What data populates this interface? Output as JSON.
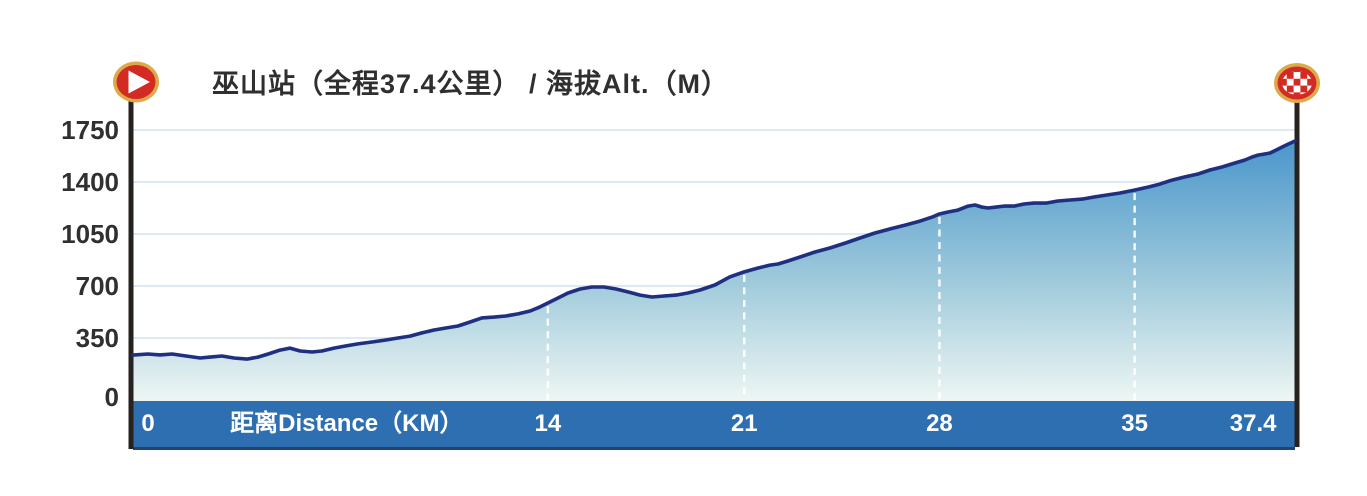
{
  "title": "巫山站（全程37.4公里） / 海拔Alt.（M）",
  "colors": {
    "bar_blue": "#2e6fb2",
    "bar_edge": "#1e4470",
    "line_navy": "#203080",
    "fill_top": "#4392ca",
    "fill_mid": "#a6cedd",
    "fill_bottom": "#eef6f4",
    "gridline": "#dde9f5",
    "axis_black": "#272220",
    "flag_red": "#d32b23",
    "flag_gold": "#ddaa4a",
    "text_dark": "#2f2f2f",
    "bar_text": "#ffffff"
  },
  "icons": {
    "start": "start-play-flag-icon",
    "finish": "finish-checkered-flag-icon"
  },
  "chart_data": {
    "type": "area",
    "title": "巫山站（全程37.4公里） / 海拔Alt.（M）",
    "stage_name": "巫山站",
    "total_distance_km": 37.4,
    "xlabel": "距离Distance（KM）",
    "ylabel": "海拔Alt.（M）",
    "x_range_km": [
      0,
      37.4
    ],
    "ylim": [
      0,
      1900
    ],
    "y_ticks": [
      0,
      350,
      700,
      1050,
      1400,
      1750
    ],
    "grid": "horizontal-light-blue, vertical-white-dashed-inside-area",
    "legend_position": "none",
    "x_ticks": [
      {
        "label": "0",
        "pct": 1.3
      },
      {
        "label": "距离Distance（KM）",
        "pct": 18.4
      },
      {
        "label": "14",
        "pct": 35.7
      },
      {
        "label": "21",
        "pct": 52.6
      },
      {
        "label": "28",
        "pct": 69.4
      },
      {
        "label": "35",
        "pct": 86.2
      },
      {
        "label": "37.4",
        "pct": 96.4
      }
    ],
    "x_gridlines_pct": [
      35.7,
      52.6,
      69.4,
      86.2
    ],
    "profile_km_m": [
      [
        0,
        255
      ],
      [
        0.48,
        261
      ],
      [
        0.87,
        256
      ],
      [
        1.26,
        261
      ],
      [
        1.71,
        250
      ],
      [
        2.16,
        239
      ],
      [
        2.48,
        244
      ],
      [
        2.86,
        250
      ],
      [
        3.25,
        239
      ],
      [
        3.67,
        233
      ],
      [
        4.02,
        244
      ],
      [
        4.35,
        261
      ],
      [
        4.73,
        283
      ],
      [
        5.05,
        294
      ],
      [
        5.38,
        278
      ],
      [
        5.76,
        272
      ],
      [
        6.08,
        278
      ],
      [
        6.47,
        294
      ],
      [
        6.86,
        306
      ],
      [
        7.24,
        317
      ],
      [
        7.69,
        328
      ],
      [
        8.14,
        339
      ],
      [
        8.53,
        350
      ],
      [
        8.92,
        363
      ],
      [
        9.3,
        384
      ],
      [
        9.69,
        404
      ],
      [
        10.07,
        417
      ],
      [
        10.46,
        431
      ],
      [
        10.85,
        458
      ],
      [
        11.23,
        485
      ],
      [
        11.62,
        491
      ],
      [
        12,
        498
      ],
      [
        12.39,
        512
      ],
      [
        12.78,
        532
      ],
      [
        13.1,
        559
      ],
      [
        13.36,
        586
      ],
      [
        13.68,
        619
      ],
      [
        14,
        653
      ],
      [
        14.39,
        680
      ],
      [
        14.77,
        693
      ],
      [
        15.16,
        693
      ],
      [
        15.55,
        680
      ],
      [
        15.93,
        660
      ],
      [
        16.32,
        639
      ],
      [
        16.7,
        626
      ],
      [
        17.09,
        633
      ],
      [
        17.48,
        639
      ],
      [
        17.86,
        653
      ],
      [
        18.25,
        673
      ],
      [
        18.73,
        707
      ],
      [
        19.21,
        761
      ],
      [
        19.66,
        794
      ],
      [
        20.12,
        821
      ],
      [
        20.5,
        841
      ],
      [
        20.76,
        848
      ],
      [
        21.08,
        868
      ],
      [
        21.47,
        895
      ],
      [
        21.95,
        929
      ],
      [
        22.43,
        956
      ],
      [
        22.92,
        989
      ],
      [
        23.4,
        1023
      ],
      [
        23.88,
        1057
      ],
      [
        24.37,
        1084
      ],
      [
        24.85,
        1110
      ],
      [
        25.33,
        1137
      ],
      [
        25.72,
        1164
      ],
      [
        25.94,
        1184
      ],
      [
        26.23,
        1198
      ],
      [
        26.55,
        1211
      ],
      [
        26.88,
        1238
      ],
      [
        27.1,
        1245
      ],
      [
        27.33,
        1231
      ],
      [
        27.52,
        1225
      ],
      [
        27.78,
        1231
      ],
      [
        28.03,
        1238
      ],
      [
        28.36,
        1238
      ],
      [
        28.68,
        1252
      ],
      [
        29,
        1258
      ],
      [
        29.39,
        1258
      ],
      [
        29.77,
        1272
      ],
      [
        30.16,
        1279
      ],
      [
        30.55,
        1285
      ],
      [
        30.93,
        1299
      ],
      [
        31.32,
        1312
      ],
      [
        31.77,
        1326
      ],
      [
        32.25,
        1346
      ],
      [
        32.67,
        1366
      ],
      [
        33.05,
        1386
      ],
      [
        33.44,
        1413
      ],
      [
        33.86,
        1434
      ],
      [
        34.28,
        1454
      ],
      [
        34.66,
        1481
      ],
      [
        35.05,
        1501
      ],
      [
        35.47,
        1528
      ],
      [
        35.79,
        1548
      ],
      [
        36.02,
        1568
      ],
      [
        36.21,
        1581
      ],
      [
        36.4,
        1588
      ],
      [
        36.6,
        1595
      ],
      [
        36.79,
        1615
      ],
      [
        36.98,
        1635
      ],
      [
        37.18,
        1655
      ],
      [
        37.4,
        1676
      ]
    ]
  }
}
